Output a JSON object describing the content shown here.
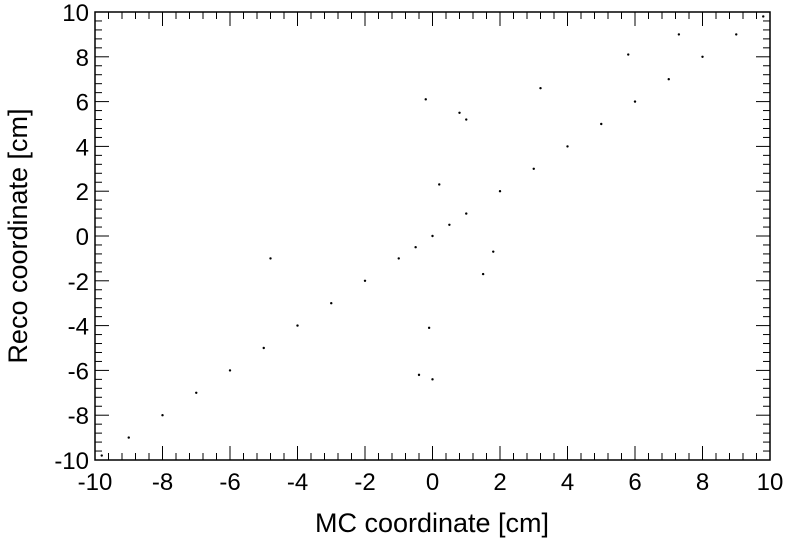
{
  "chart_data": {
    "type": "scatter",
    "title": "",
    "xlabel": "MC coordinate [cm]",
    "ylabel": "Reco coordinate [cm]",
    "xlim": [
      -10,
      10
    ],
    "ylim": [
      -10,
      10
    ],
    "x_ticks": [
      "-10",
      "-8",
      "-6",
      "-4",
      "-2",
      "0",
      "2",
      "4",
      "6",
      "8",
      "10"
    ],
    "y_ticks": [
      "-10",
      "-8",
      "-6",
      "-4",
      "-2",
      "0",
      "2",
      "4",
      "6",
      "8",
      "10"
    ],
    "grid": false,
    "legend": "none",
    "marker_color": "#000000",
    "relation": "reco approximately equals MC (points clustered along y = x, densest near 0)",
    "series": [
      {
        "values": [
          [
            -9.8,
            -9.8
          ],
          [
            -9.0,
            -9.0
          ],
          [
            -8.0,
            -8.0
          ],
          [
            -7.0,
            -7.0
          ],
          [
            -6.0,
            -6.0
          ],
          [
            -5.0,
            -5.0
          ],
          [
            -4.0,
            -4.0
          ],
          [
            -3.0,
            -3.0
          ],
          [
            -2.0,
            -2.0
          ],
          [
            -1.0,
            -1.0
          ],
          [
            -0.5,
            -0.5
          ],
          [
            0.0,
            0.0
          ],
          [
            0.5,
            0.5
          ],
          [
            1.0,
            1.0
          ],
          [
            2.0,
            2.0
          ],
          [
            3.0,
            3.0
          ],
          [
            4.0,
            4.0
          ],
          [
            5.0,
            5.0
          ],
          [
            6.0,
            6.0
          ],
          [
            7.0,
            7.0
          ],
          [
            8.0,
            8.0
          ],
          [
            9.0,
            9.0
          ],
          [
            9.8,
            9.8
          ],
          [
            -4.8,
            -1.0
          ],
          [
            -0.4,
            -6.2
          ],
          [
            0.0,
            -6.4
          ],
          [
            0.8,
            5.5
          ],
          [
            1.0,
            5.2
          ],
          [
            1.5,
            -1.7
          ],
          [
            1.8,
            -0.7
          ],
          [
            -0.2,
            6.1
          ],
          [
            5.8,
            8.1
          ],
          [
            0.2,
            2.3
          ],
          [
            -0.1,
            -4.1
          ],
          [
            3.2,
            6.6
          ],
          [
            7.3,
            9.0
          ]
        ]
      }
    ]
  }
}
